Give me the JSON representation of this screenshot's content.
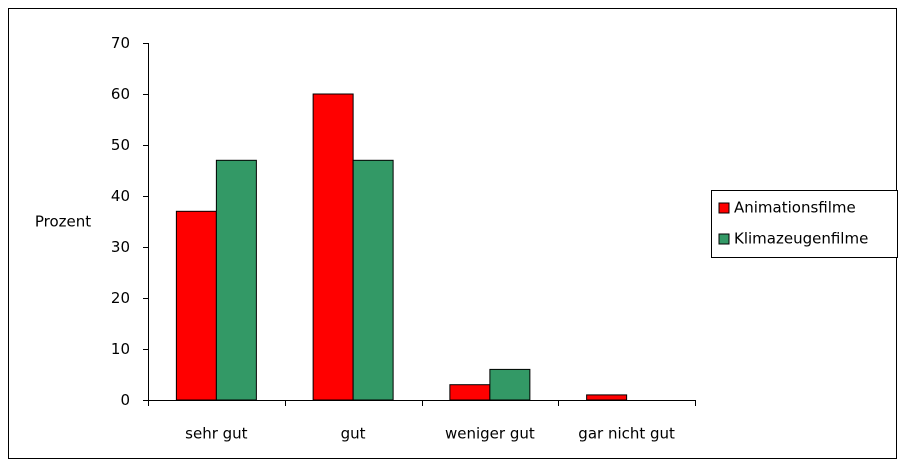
{
  "chart_data": {
    "type": "bar",
    "categories": [
      "sehr gut",
      "gut",
      "weniger gut",
      "gar nicht gut"
    ],
    "series": [
      {
        "name": "Animationsfilme",
        "color": "#ff0000",
        "values": [
          37,
          60,
          3,
          1
        ]
      },
      {
        "name": "Klimazeugenfilme",
        "color": "#339966",
        "values": [
          47,
          47,
          6,
          0
        ]
      }
    ],
    "y_label": "Prozent",
    "ylim": [
      0,
      70
    ],
    "yticks": [
      0,
      10,
      20,
      30,
      40,
      50,
      60,
      70
    ],
    "legend": "right"
  }
}
